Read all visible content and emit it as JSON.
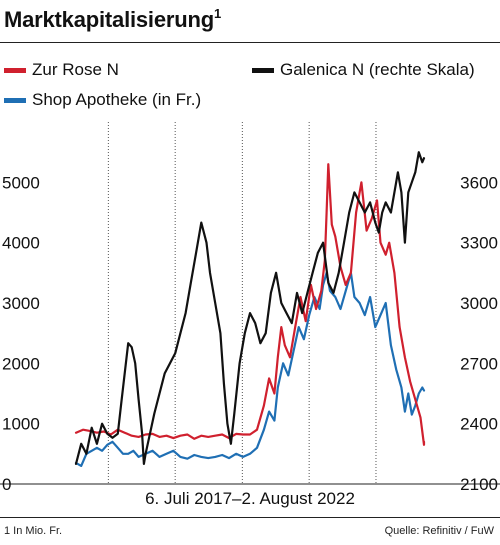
{
  "header": {
    "title": "Marktkapitalisierung",
    "title_sup": "1"
  },
  "footer": {
    "period": "6. Juli 2017–2. August 2022",
    "note": "1 In Mio. Fr.",
    "source": "Quelle: Refinitiv / FuW"
  },
  "chart_data": {
    "type": "line",
    "title": "Marktkapitalisierung",
    "x": [
      "2017-07-06",
      "2022-08-02"
    ],
    "left_axis": {
      "ylim": [
        0,
        6000
      ],
      "ticks": [
        0,
        1000,
        2000,
        3000,
        4000,
        5000
      ]
    },
    "right_axis": {
      "ylim": [
        2100,
        3900
      ],
      "ticks": [
        2100,
        2400,
        2700,
        3000,
        3300,
        3600
      ]
    },
    "grid": "vertical yearly lines",
    "legend_placement": "top",
    "series": [
      {
        "name": "Zur Rose N",
        "axis": "left",
        "color": "#d0202e",
        "points": [
          [
            0,
            850
          ],
          [
            0.02,
            900
          ],
          [
            0.04,
            880
          ],
          [
            0.06,
            850
          ],
          [
            0.08,
            870
          ],
          [
            0.1,
            820
          ],
          [
            0.12,
            900
          ],
          [
            0.14,
            850
          ],
          [
            0.16,
            800
          ],
          [
            0.18,
            780
          ],
          [
            0.2,
            820
          ],
          [
            0.22,
            830
          ],
          [
            0.24,
            780
          ],
          [
            0.26,
            800
          ],
          [
            0.28,
            760
          ],
          [
            0.3,
            800
          ],
          [
            0.32,
            820
          ],
          [
            0.34,
            750
          ],
          [
            0.36,
            800
          ],
          [
            0.38,
            780
          ],
          [
            0.4,
            800
          ],
          [
            0.42,
            820
          ],
          [
            0.44,
            760
          ],
          [
            0.46,
            830
          ],
          [
            0.48,
            820
          ],
          [
            0.5,
            820
          ],
          [
            0.52,
            900
          ],
          [
            0.54,
            1300
          ],
          [
            0.555,
            1750
          ],
          [
            0.57,
            1500
          ],
          [
            0.58,
            2100
          ],
          [
            0.59,
            2600
          ],
          [
            0.6,
            2300
          ],
          [
            0.615,
            2100
          ],
          [
            0.63,
            2600
          ],
          [
            0.645,
            3100
          ],
          [
            0.66,
            2700
          ],
          [
            0.675,
            3300
          ],
          [
            0.69,
            2900
          ],
          [
            0.705,
            3200
          ],
          [
            0.715,
            3700
          ],
          [
            0.72,
            4500
          ],
          [
            0.725,
            5300
          ],
          [
            0.735,
            4300
          ],
          [
            0.745,
            4100
          ],
          [
            0.76,
            3600
          ],
          [
            0.775,
            3300
          ],
          [
            0.79,
            3500
          ],
          [
            0.805,
            4500
          ],
          [
            0.82,
            5000
          ],
          [
            0.835,
            4200
          ],
          [
            0.85,
            4400
          ],
          [
            0.865,
            4700
          ],
          [
            0.875,
            4000
          ],
          [
            0.89,
            3800
          ],
          [
            0.9,
            4000
          ],
          [
            0.915,
            3500
          ],
          [
            0.93,
            2600
          ],
          [
            0.945,
            2100
          ],
          [
            0.96,
            1700
          ],
          [
            0.975,
            1400
          ],
          [
            0.99,
            1100
          ],
          [
            1.0,
            650
          ],
          [
            1.0,
            700
          ]
        ]
      },
      {
        "name": "Shop Apotheke (in Fr.)",
        "axis": "left",
        "color": "#1f6fb4",
        "points": [
          [
            0,
            350
          ],
          [
            0.015,
            300
          ],
          [
            0.03,
            500
          ],
          [
            0.045,
            550
          ],
          [
            0.06,
            600
          ],
          [
            0.075,
            550
          ],
          [
            0.09,
            650
          ],
          [
            0.105,
            700
          ],
          [
            0.12,
            600
          ],
          [
            0.135,
            500
          ],
          [
            0.15,
            500
          ],
          [
            0.165,
            550
          ],
          [
            0.18,
            450
          ],
          [
            0.2,
            500
          ],
          [
            0.22,
            550
          ],
          [
            0.24,
            450
          ],
          [
            0.26,
            500
          ],
          [
            0.28,
            550
          ],
          [
            0.3,
            450
          ],
          [
            0.32,
            420
          ],
          [
            0.34,
            480
          ],
          [
            0.36,
            450
          ],
          [
            0.38,
            430
          ],
          [
            0.4,
            450
          ],
          [
            0.42,
            480
          ],
          [
            0.44,
            430
          ],
          [
            0.46,
            500
          ],
          [
            0.48,
            450
          ],
          [
            0.5,
            500
          ],
          [
            0.52,
            600
          ],
          [
            0.54,
            900
          ],
          [
            0.555,
            1200
          ],
          [
            0.57,
            1050
          ],
          [
            0.58,
            1600
          ],
          [
            0.595,
            2000
          ],
          [
            0.61,
            1800
          ],
          [
            0.625,
            2200
          ],
          [
            0.64,
            2600
          ],
          [
            0.655,
            2400
          ],
          [
            0.67,
            2800
          ],
          [
            0.685,
            3100
          ],
          [
            0.7,
            2900
          ],
          [
            0.71,
            3300
          ],
          [
            0.72,
            3500
          ],
          [
            0.73,
            3200
          ],
          [
            0.745,
            3100
          ],
          [
            0.76,
            2900
          ],
          [
            0.775,
            3200
          ],
          [
            0.79,
            3500
          ],
          [
            0.8,
            3100
          ],
          [
            0.815,
            3000
          ],
          [
            0.83,
            2800
          ],
          [
            0.845,
            3100
          ],
          [
            0.86,
            2600
          ],
          [
            0.875,
            2800
          ],
          [
            0.89,
            3000
          ],
          [
            0.905,
            2300
          ],
          [
            0.92,
            1900
          ],
          [
            0.935,
            1600
          ],
          [
            0.945,
            1200
          ],
          [
            0.955,
            1500
          ],
          [
            0.965,
            1150
          ],
          [
            0.975,
            1300
          ],
          [
            0.985,
            1500
          ],
          [
            0.995,
            1600
          ],
          [
            1.0,
            1550
          ]
        ]
      },
      {
        "name": "Galenica N (rechte Skala)",
        "axis": "right",
        "color": "#111111",
        "points": [
          [
            0,
            2200
          ],
          [
            0.015,
            2300
          ],
          [
            0.03,
            2250
          ],
          [
            0.045,
            2380
          ],
          [
            0.06,
            2300
          ],
          [
            0.075,
            2400
          ],
          [
            0.09,
            2350
          ],
          [
            0.105,
            2330
          ],
          [
            0.12,
            2350
          ],
          [
            0.13,
            2500
          ],
          [
            0.14,
            2650
          ],
          [
            0.15,
            2800
          ],
          [
            0.16,
            2780
          ],
          [
            0.17,
            2700
          ],
          [
            0.18,
            2520
          ],
          [
            0.19,
            2350
          ],
          [
            0.195,
            2200
          ],
          [
            0.2,
            2250
          ],
          [
            0.21,
            2330
          ],
          [
            0.225,
            2450
          ],
          [
            0.24,
            2550
          ],
          [
            0.255,
            2650
          ],
          [
            0.27,
            2700
          ],
          [
            0.285,
            2750
          ],
          [
            0.3,
            2850
          ],
          [
            0.315,
            2950
          ],
          [
            0.33,
            3100
          ],
          [
            0.345,
            3250
          ],
          [
            0.36,
            3400
          ],
          [
            0.375,
            3300
          ],
          [
            0.385,
            3150
          ],
          [
            0.4,
            3000
          ],
          [
            0.415,
            2850
          ],
          [
            0.425,
            2600
          ],
          [
            0.435,
            2400
          ],
          [
            0.445,
            2300
          ],
          [
            0.455,
            2450
          ],
          [
            0.47,
            2700
          ],
          [
            0.485,
            2850
          ],
          [
            0.5,
            2950
          ],
          [
            0.515,
            2900
          ],
          [
            0.53,
            2800
          ],
          [
            0.545,
            2850
          ],
          [
            0.56,
            3050
          ],
          [
            0.575,
            3150
          ],
          [
            0.59,
            3000
          ],
          [
            0.605,
            2950
          ],
          [
            0.62,
            2900
          ],
          [
            0.635,
            3050
          ],
          [
            0.65,
            2950
          ],
          [
            0.665,
            3050
          ],
          [
            0.68,
            3150
          ],
          [
            0.695,
            3250
          ],
          [
            0.71,
            3300
          ],
          [
            0.725,
            3100
          ],
          [
            0.74,
            3050
          ],
          [
            0.755,
            3150
          ],
          [
            0.77,
            3300
          ],
          [
            0.785,
            3450
          ],
          [
            0.8,
            3550
          ],
          [
            0.815,
            3500
          ],
          [
            0.83,
            3450
          ],
          [
            0.845,
            3500
          ],
          [
            0.86,
            3400
          ],
          [
            0.87,
            3350
          ],
          [
            0.88,
            3450
          ],
          [
            0.89,
            3500
          ],
          [
            0.905,
            3450
          ],
          [
            0.915,
            3550
          ],
          [
            0.925,
            3650
          ],
          [
            0.935,
            3550
          ],
          [
            0.945,
            3300
          ],
          [
            0.955,
            3550
          ],
          [
            0.965,
            3600
          ],
          [
            0.975,
            3650
          ],
          [
            0.985,
            3750
          ],
          [
            0.995,
            3700
          ],
          [
            1.0,
            3720
          ]
        ]
      }
    ]
  }
}
